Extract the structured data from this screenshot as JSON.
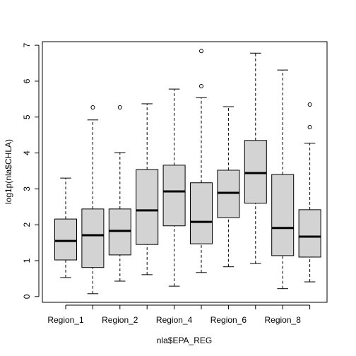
{
  "chart_data": {
    "type": "boxplot",
    "x_label": "nla$EPA_REG",
    "y_label": "log1p(nla$CHLA)",
    "categories": [
      "Region_1",
      null,
      "Region_2",
      null,
      "Region_4",
      null,
      "Region_6",
      null,
      "Region_8",
      null
    ],
    "whisker_low": [
      0.53,
      0.08,
      0.43,
      0.61,
      0.29,
      0.67,
      0.83,
      0.92,
      0.22,
      0.41
    ],
    "q1": [
      1.02,
      0.81,
      1.16,
      1.45,
      1.97,
      1.47,
      2.2,
      2.6,
      1.14,
      1.1
    ],
    "median": [
      1.55,
      1.71,
      1.83,
      2.4,
      2.93,
      2.08,
      2.89,
      3.44,
      1.91,
      1.67
    ],
    "q3": [
      2.16,
      2.44,
      2.44,
      3.54,
      3.66,
      3.17,
      3.52,
      4.35,
      3.4,
      2.42
    ],
    "whisker_high": [
      3.3,
      4.92,
      4.01,
      5.37,
      5.78,
      5.54,
      5.29,
      6.78,
      6.31,
      4.27
    ],
    "outliers": [
      [],
      [
        5.27
      ],
      [
        5.27
      ],
      [],
      [],
      [
        5.86,
        6.84
      ],
      [],
      [],
      [],
      [
        4.72,
        5.35
      ]
    ],
    "color": "#d3d3d3",
    "ylim": [
      -0.16,
      7.1
    ],
    "yticks": [
      0,
      1,
      2,
      3,
      4,
      5,
      6,
      7
    ]
  }
}
